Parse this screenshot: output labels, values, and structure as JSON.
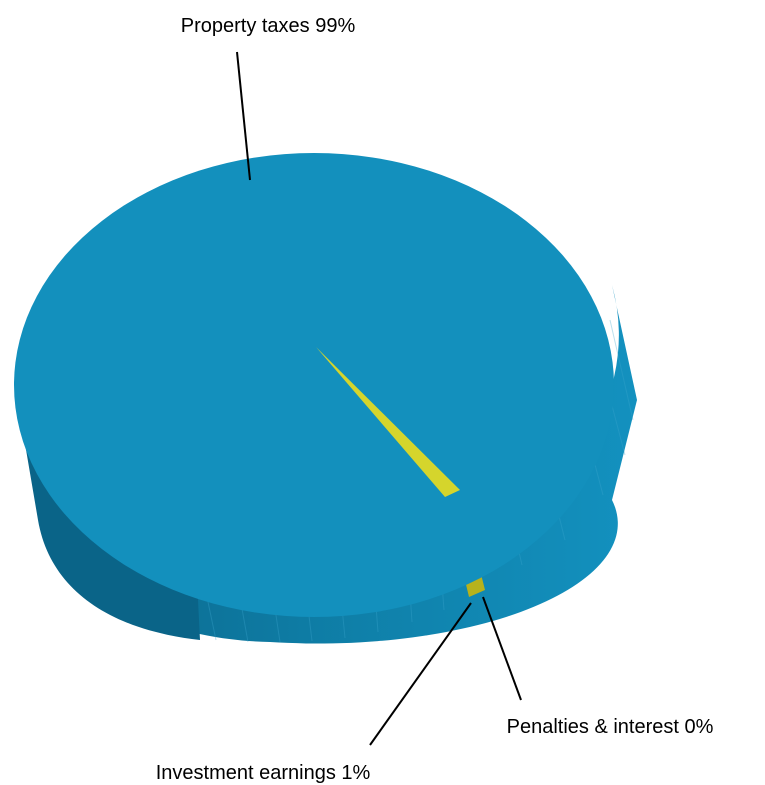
{
  "chart_data": {
    "type": "pie",
    "style": "3d",
    "slices": [
      {
        "name": "Property taxes",
        "value": 99,
        "label": "Property taxes 99%",
        "color": "#1490bd"
      },
      {
        "name": "Investment earnings",
        "value": 1,
        "label": "Investment earnings 1%",
        "color": "#c8c822"
      },
      {
        "name": "Penalties & interest",
        "value": 0,
        "label": "Penalties & interest 0%",
        "color": "#b7b41c"
      }
    ],
    "title": "",
    "legend": "none"
  }
}
